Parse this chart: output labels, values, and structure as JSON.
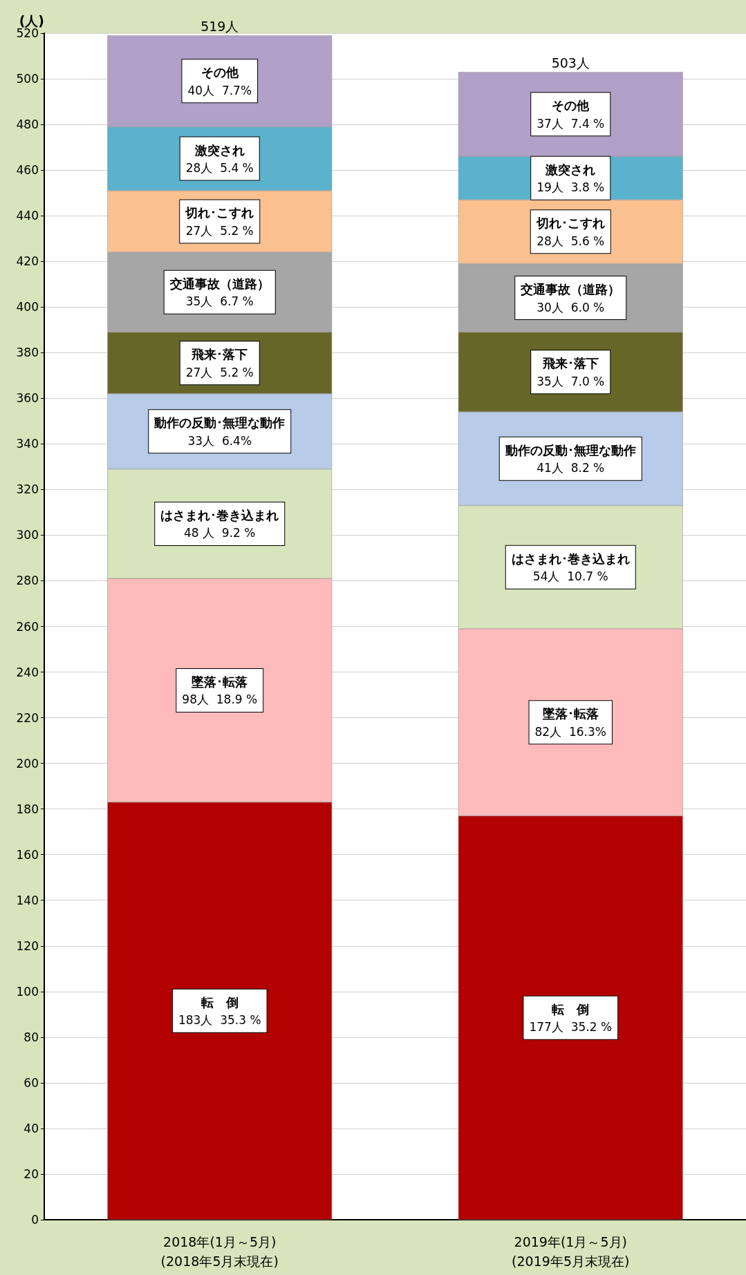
{
  "chart_data": {
    "type": "bar",
    "stacked": true,
    "ylabel": "(人)",
    "categories": [
      "2018年(1月～5月)\n(2018年5月末現在)",
      "2019年(1月～5月)\n(2019年5月末現在)"
    ],
    "ylim": [
      0,
      520
    ],
    "yticks": [
      0,
      20,
      40,
      60,
      80,
      100,
      120,
      140,
      160,
      180,
      200,
      220,
      240,
      260,
      280,
      300,
      320,
      340,
      360,
      380,
      400,
      420,
      440,
      460,
      480,
      500,
      520
    ],
    "grid": "y",
    "legend": false,
    "totals": [
      "519人",
      "503人"
    ],
    "series": [
      {
        "name": "転　倒",
        "color": "#b30000",
        "values": [
          183,
          177
        ],
        "value_labels": [
          "183人  35.3 %",
          "177人  35.2 %"
        ]
      },
      {
        "name": "墜落･転落",
        "color": "#ffbbbb",
        "values": [
          98,
          82
        ],
        "value_labels": [
          "98人  18.9 %",
          "82人  16.3%"
        ]
      },
      {
        "name": "はさまれ･巻き込まれ",
        "color": "#d8e4bc",
        "values": [
          48,
          54
        ],
        "value_labels": [
          "48 人  9.2 %",
          "54人  10.7 %"
        ]
      },
      {
        "name": "動作の反動･無理な動作",
        "color": "#b8cce9",
        "values": [
          33,
          41
        ],
        "value_labels": [
          "33人  6.4%",
          "41人  8.2 %"
        ]
      },
      {
        "name": "飛来･落下",
        "color": "#666629",
        "values": [
          27,
          35
        ],
        "value_labels": [
          "27人  5.2 %",
          "35人  7.0 %"
        ]
      },
      {
        "name": "交通事故（道路）",
        "color": "#a6a6a6",
        "values": [
          35,
          30
        ],
        "value_labels": [
          "35人  6.7 %",
          "30人  6.0 %"
        ]
      },
      {
        "name": "切れ･こすれ",
        "color": "#fac090",
        "values": [
          27,
          28
        ],
        "value_labels": [
          "27人  5.2 %",
          "28人  5.6 %"
        ]
      },
      {
        "name": "激突され",
        "color": "#5bb2cc",
        "values": [
          28,
          19
        ],
        "value_labels": [
          "28人  5.4 %",
          "19人  3.8 %"
        ]
      },
      {
        "name": "その他",
        "color": "#b1a0c7",
        "values": [
          40,
          37
        ],
        "value_labels": [
          "40人  7.7%",
          "37人  7.4 %"
        ]
      }
    ]
  }
}
